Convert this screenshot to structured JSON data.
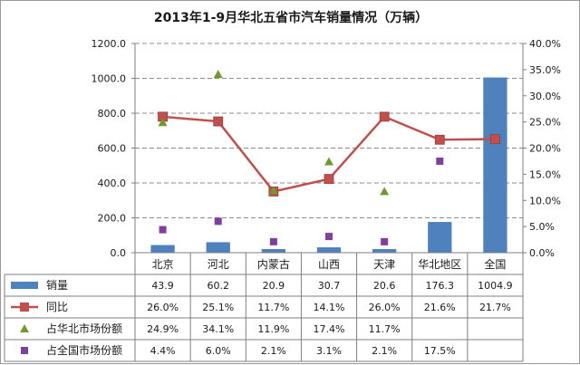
{
  "chart_data": {
    "type": "bar",
    "title": "2013年1-9月华北五省市汽车销量情况（万辆）",
    "categories": [
      "北京",
      "河北",
      "内蒙古",
      "山西",
      "天津",
      "华北地区",
      "全国"
    ],
    "ylim": [
      0,
      1200
    ],
    "y_ticks": [
      "0.0",
      "200.0",
      "400.0",
      "600.0",
      "800.0",
      "1000.0",
      "1200.0"
    ],
    "y2lim": [
      0,
      40
    ],
    "y2_ticks": [
      "0.0%",
      "5.0%",
      "10.0%",
      "15.0%",
      "20.0%",
      "25.0%",
      "30.0%",
      "35.0%",
      "40.0%"
    ],
    "grid": true,
    "legend": "data-table",
    "colors": {
      "bar": "#4f81bd",
      "line": "#c0504d",
      "triangle": "#6e9a2e",
      "square": "#7e3f9e"
    },
    "series": [
      {
        "name": "销量",
        "type": "bar",
        "axis": "left",
        "values": [
          43.9,
          60.2,
          20.9,
          30.7,
          20.6,
          176.3,
          1004.9
        ],
        "labels": [
          "43.9",
          "60.2",
          "20.9",
          "30.7",
          "20.6",
          "176.3",
          "1004.9"
        ]
      },
      {
        "name": "同比",
        "type": "line",
        "axis": "right",
        "values": [
          26.0,
          25.1,
          11.7,
          14.1,
          26.0,
          21.6,
          21.7
        ],
        "labels": [
          "26.0%",
          "25.1%",
          "11.7%",
          "14.1%",
          "26.0%",
          "21.6%",
          "21.7%"
        ]
      },
      {
        "name": "占华北市场份额",
        "type": "scatter",
        "marker": "triangle",
        "axis": "right",
        "values": [
          24.9,
          34.1,
          11.9,
          17.4,
          11.7,
          null,
          null
        ],
        "labels": [
          "24.9%",
          "34.1%",
          "11.9%",
          "17.4%",
          "11.7%",
          "",
          ""
        ]
      },
      {
        "name": "占全国市场份额",
        "type": "scatter",
        "marker": "square",
        "axis": "right",
        "values": [
          4.4,
          6.0,
          2.1,
          3.1,
          2.1,
          17.5,
          null
        ],
        "labels": [
          "4.4%",
          "6.0%",
          "2.1%",
          "3.1%",
          "2.1%",
          "17.5%",
          ""
        ]
      }
    ]
  }
}
